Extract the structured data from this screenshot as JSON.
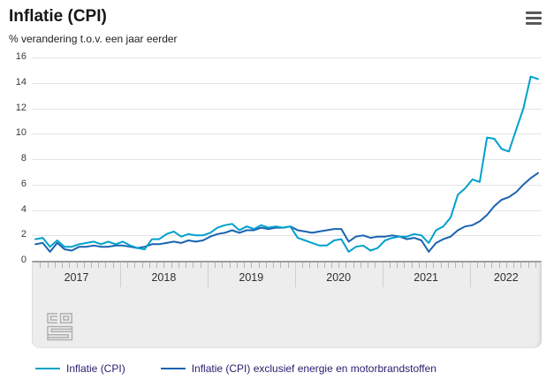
{
  "header": {
    "title": "Inflatie (CPI)",
    "subtitle": "% verandering t.o.v. een jaar eerder",
    "menu_icon": "hamburger-menu-icon"
  },
  "chart_data": {
    "type": "line",
    "title": "Inflatie (CPI)",
    "ylabel": "% verandering t.o.v. een jaar eerder",
    "x_unit": "month",
    "x_start": "2017-01",
    "x_end": "2022-10",
    "year_labels": [
      "2017",
      "2018",
      "2019",
      "2020",
      "2021",
      "2022"
    ],
    "months_per_year": [
      12,
      12,
      12,
      12,
      12,
      10
    ],
    "ylim": [
      0,
      16
    ],
    "yticks": [
      0,
      2,
      4,
      6,
      8,
      10,
      12,
      14,
      16
    ],
    "grid": "horizontal",
    "legend_position": "bottom",
    "series": [
      {
        "name": "Inflatie (CPI)",
        "color": "#00a1cd",
        "values": [
          1.7,
          1.8,
          1.1,
          1.6,
          1.1,
          1.1,
          1.3,
          1.4,
          1.5,
          1.3,
          1.5,
          1.3,
          1.5,
          1.2,
          1.0,
          0.9,
          1.7,
          1.7,
          2.1,
          2.3,
          1.9,
          2.1,
          2.0,
          2.0,
          2.2,
          2.6,
          2.8,
          2.9,
          2.4,
          2.7,
          2.5,
          2.8,
          2.6,
          2.7,
          2.6,
          2.7,
          1.8,
          1.6,
          1.4,
          1.2,
          1.2,
          1.6,
          1.7,
          0.7,
          1.1,
          1.2,
          0.8,
          1.0,
          1.6,
          1.8,
          1.9,
          1.9,
          2.1,
          2.0,
          1.4,
          2.4,
          2.7,
          3.4,
          5.2,
          5.7,
          6.4,
          6.2,
          9.7,
          9.6,
          8.8,
          8.6,
          10.3,
          12.0,
          14.5,
          14.3
        ]
      },
      {
        "name": "Inflatie (CPI) exclusief energie en motorbrandstoffen",
        "color": "#1a63b0",
        "values": [
          1.3,
          1.4,
          0.7,
          1.4,
          0.9,
          0.8,
          1.1,
          1.1,
          1.2,
          1.1,
          1.1,
          1.2,
          1.2,
          1.1,
          1.0,
          1.1,
          1.3,
          1.3,
          1.4,
          1.5,
          1.4,
          1.6,
          1.5,
          1.6,
          1.9,
          2.1,
          2.2,
          2.4,
          2.2,
          2.4,
          2.4,
          2.6,
          2.5,
          2.6,
          2.6,
          2.7,
          2.4,
          2.3,
          2.2,
          2.3,
          2.4,
          2.5,
          2.5,
          1.5,
          1.9,
          2.0,
          1.8,
          1.9,
          1.9,
          2.0,
          1.9,
          1.7,
          1.8,
          1.6,
          0.7,
          1.4,
          1.7,
          1.9,
          2.4,
          2.7,
          2.8,
          3.1,
          3.6,
          4.3,
          4.8,
          5.0,
          5.4,
          6.0,
          6.5,
          6.9
        ]
      }
    ]
  },
  "brand": {
    "logo": "cbs-logo"
  },
  "colors": {
    "grid": "#e3e3e3",
    "panel_bg": "#ededed",
    "panel_border": "#9e9e9e",
    "month_tick": "#b5b5b5",
    "year_separator": "#cfcfcf",
    "legend_text": "#271d6c",
    "menu_icon": "#59595b"
  }
}
